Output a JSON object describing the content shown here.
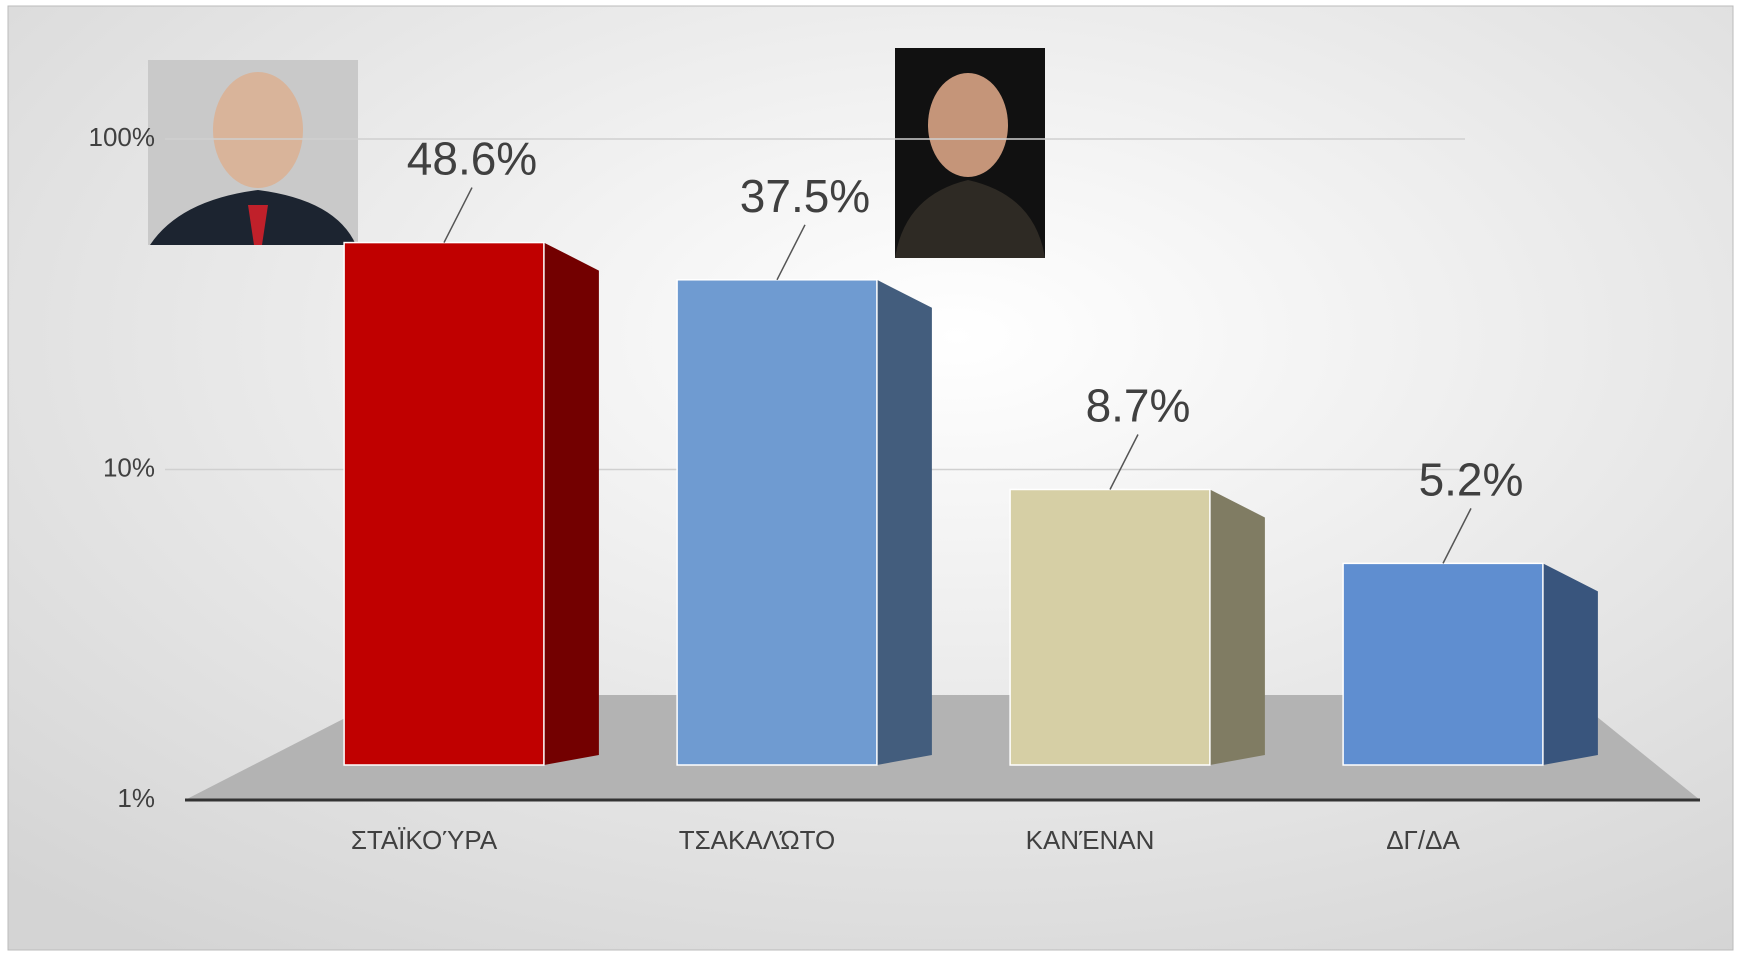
{
  "chart_data": {
    "type": "bar3d",
    "categories": [
      "ΣΤΑΪΚΟΎΡΑ",
      "ΤΣΑΚΑΛΏΤΟ",
      "ΚΑΝΈΝΑΝ",
      "ΔΓ/ΔΑ"
    ],
    "values": [
      48.6,
      37.5,
      8.7,
      5.2
    ],
    "value_labels": [
      "48.6%",
      "37.5%",
      "8.7%",
      "5.2%"
    ],
    "colors": [
      "#c00000",
      "#6f9bd1",
      "#d6cfa5",
      "#5f8ed0"
    ],
    "ylim": [
      1,
      100
    ],
    "yticks": [
      {
        "value": 1,
        "label": "1%"
      },
      {
        "value": 10,
        "label": "10%"
      },
      {
        "value": 100,
        "label": "100%"
      }
    ],
    "log_scale": true,
    "grid": true
  }
}
